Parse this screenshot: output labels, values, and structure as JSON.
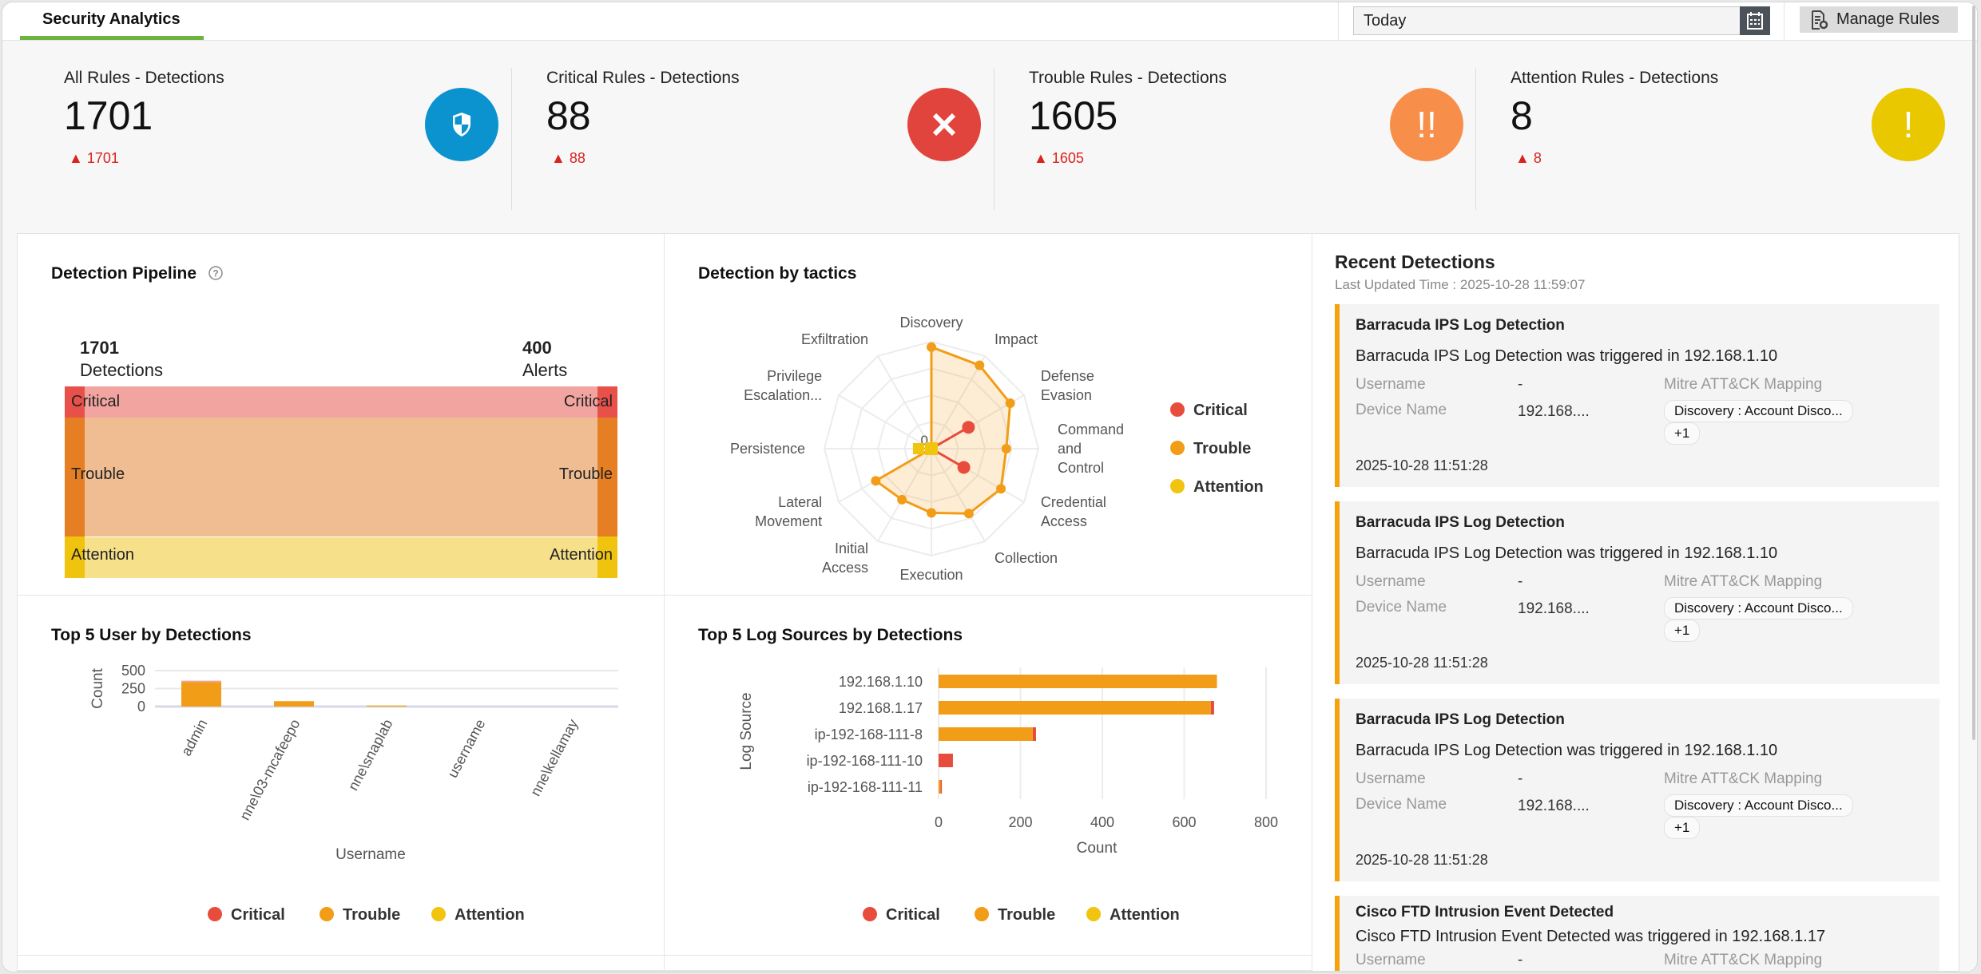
{
  "header": {
    "tab": "Security Analytics",
    "date_range": "Today",
    "manage_rules": "Manage Rules"
  },
  "kpis": [
    {
      "title": "All Rules - Detections",
      "value": "1701",
      "delta": "1701",
      "icon": "shield-icon",
      "color": "#0a93cf"
    },
    {
      "title": "Critical Rules - Detections",
      "value": "88",
      "delta": "88",
      "icon": "close-icon",
      "color": "#e0443c"
    },
    {
      "title": "Trouble Rules - Detections",
      "value": "1605",
      "delta": "1605",
      "icon": "double-exclamation-icon",
      "color": "#f78f4a"
    },
    {
      "title": "Attention Rules - Detections",
      "value": "8",
      "delta": "8",
      "icon": "exclamation-icon",
      "color": "#eac800"
    }
  ],
  "colors": {
    "critical": "#e84c3d",
    "trouble": "#f29d17",
    "attention": "#f1c40f"
  },
  "pipeline": {
    "title": "Detection Pipeline",
    "left_count": "1701",
    "left_label": "Detections",
    "right_count": "400",
    "right_label": "Alerts",
    "bands": [
      "Critical",
      "Trouble",
      "Attention"
    ]
  },
  "legend": [
    "Critical",
    "Trouble",
    "Attention"
  ],
  "chart_data": [
    {
      "type": "radar",
      "title": "Detection by tactics",
      "axis_tick": "0",
      "categories": [
        "Discovery",
        "Impact",
        "Defense Evasion",
        "Command and Control",
        "Credential Access",
        "Collection",
        "Execution",
        "Initial Access",
        "Lateral Movement",
        "Persistence",
        "Privilege Escalation...",
        "Exfiltration"
      ],
      "series": [
        {
          "name": "Critical",
          "values": [
            0,
            0,
            40,
            0,
            35,
            0,
            0,
            0,
            0,
            0,
            0,
            0
          ]
        },
        {
          "name": "Trouble",
          "values": [
            95,
            90,
            85,
            70,
            75,
            70,
            60,
            55,
            60,
            0,
            0,
            0
          ]
        },
        {
          "name": "Attention",
          "values": [
            0,
            0,
            0,
            0,
            0,
            0,
            0,
            0,
            0,
            12,
            0,
            0
          ]
        }
      ],
      "legend": "right"
    },
    {
      "type": "bar",
      "title": "Top 5 User by Detections",
      "xlabel": "Username",
      "ylabel": "Count",
      "ylim": [
        0,
        500
      ],
      "yticks": [
        0,
        250,
        500
      ],
      "categories": [
        "admin",
        "nne\\03-mcafeepo",
        "nne\\snaplab",
        "username",
        "nne\\kellamay"
      ],
      "series": [
        {
          "name": "Critical",
          "values": [
            20,
            0,
            0,
            0,
            0
          ]
        },
        {
          "name": "Trouble",
          "values": [
            340,
            75,
            12,
            0,
            0
          ]
        },
        {
          "name": "Attention",
          "values": [
            0,
            0,
            3,
            0,
            0
          ]
        }
      ],
      "legend": "bottom"
    },
    {
      "type": "bar",
      "orientation": "horizontal",
      "title": "Top 5 Log Sources by Detections",
      "xlabel": "Count",
      "ylabel": "Log Source",
      "xlim": [
        0,
        800
      ],
      "xticks": [
        0,
        200,
        400,
        600,
        800
      ],
      "categories": [
        "192.168.1.10",
        "192.168.1.17",
        "ip-192-168-111-8",
        "ip-192-168-111-10",
        "ip-192-168-111-11"
      ],
      "series": [
        {
          "name": "Critical",
          "values": [
            0,
            8,
            8,
            35,
            3
          ]
        },
        {
          "name": "Trouble",
          "values": [
            680,
            665,
            230,
            0,
            5
          ]
        },
        {
          "name": "Attention",
          "values": [
            0,
            0,
            0,
            0,
            0
          ]
        }
      ],
      "legend": "bottom"
    }
  ],
  "recent": {
    "title": "Recent Detections",
    "updated": "Last Updated Time : 2025-10-28 11:59:07",
    "labels": {
      "username": "Username",
      "device": "Device Name",
      "mitre": "Mitre ATT&CK Mapping"
    },
    "items": [
      {
        "title": "Barracuda IPS Log Detection",
        "desc": "Barracuda IPS Log Detection was triggered in 192.168.1.10",
        "username": "-",
        "device": "192.168....",
        "mitre": "Discovery : Account Disco...",
        "more": "+1",
        "time": "2025-10-28 11:51:28"
      },
      {
        "title": "Barracuda IPS Log Detection",
        "desc": "Barracuda IPS Log Detection was triggered in 192.168.1.10",
        "username": "-",
        "device": "192.168....",
        "mitre": "Discovery : Account Disco...",
        "more": "+1",
        "time": "2025-10-28 11:51:28"
      },
      {
        "title": "Barracuda IPS Log Detection",
        "desc": "Barracuda IPS Log Detection was triggered in 192.168.1.10",
        "username": "-",
        "device": "192.168....",
        "mitre": "Discovery : Account Disco...",
        "more": "+1",
        "time": "2025-10-28 11:51:28"
      },
      {
        "title": "Cisco FTD Intrusion Event Detected",
        "desc": "Cisco FTD Intrusion Event Detected was triggered in 192.168.1.17",
        "username": "-"
      }
    ]
  }
}
